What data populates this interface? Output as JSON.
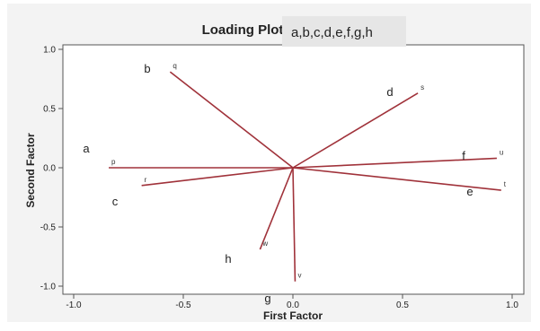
{
  "chart_data": {
    "type": "line",
    "title": "Loading Plot",
    "xlabel": "First Factor",
    "ylabel": "Second Factor",
    "xlim": [
      -1.0,
      1.0
    ],
    "ylim": [
      -1.0,
      1.0
    ],
    "x_ticks": [
      "-1.0",
      "-0.5",
      "0.0",
      "0.5",
      "1.0"
    ],
    "y_ticks": [
      "1.0",
      "0.5",
      "0.0",
      "-0.5",
      "-1.0"
    ],
    "grid": false,
    "series": [
      {
        "name": "p",
        "x": [
          0,
          -0.84
        ],
        "y": [
          0,
          0.0
        ]
      },
      {
        "name": "q",
        "x": [
          0,
          -0.56
        ],
        "y": [
          0,
          0.81
        ]
      },
      {
        "name": "r",
        "x": [
          0,
          -0.69
        ],
        "y": [
          0,
          -0.15
        ]
      },
      {
        "name": "s",
        "x": [
          0,
          0.57
        ],
        "y": [
          0,
          0.63
        ]
      },
      {
        "name": "t",
        "x": [
          0,
          0.95
        ],
        "y": [
          0,
          -0.19
        ]
      },
      {
        "name": "u",
        "x": [
          0,
          0.93
        ],
        "y": [
          0,
          0.08
        ]
      },
      {
        "name": "v",
        "x": [
          0,
          0.01
        ],
        "y": [
          0,
          -0.96
        ]
      },
      {
        "name": "w",
        "x": [
          0,
          -0.15
        ],
        "y": [
          0,
          -0.69
        ]
      }
    ],
    "annotations": [
      "a",
      "b",
      "c",
      "d",
      "e",
      "f",
      "g",
      "h"
    ],
    "overlay_box_text": "a,b,c,d,e,f,g,h"
  },
  "colors": {
    "vector": "#a0323a",
    "background": "#f3f3f3",
    "plot_background": "#ffffff",
    "overlay_box": "#e6e6e6"
  }
}
